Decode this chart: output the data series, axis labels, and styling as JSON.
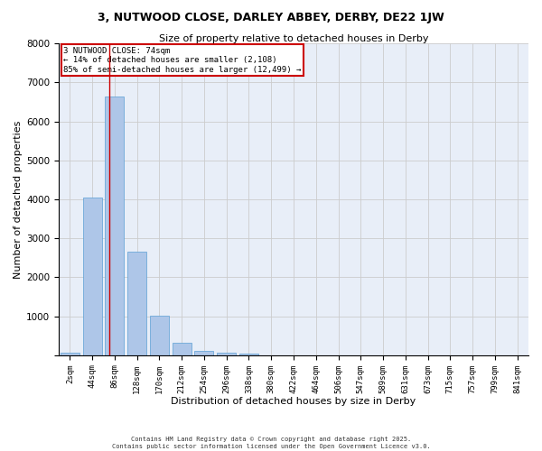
{
  "title": "3, NUTWOOD CLOSE, DARLEY ABBEY, DERBY, DE22 1JW",
  "subtitle": "Size of property relative to detached houses in Derby",
  "xlabel": "Distribution of detached houses by size in Derby",
  "ylabel": "Number of detached properties",
  "bar_color": "#aec6e8",
  "bar_edge_color": "#5a9fd4",
  "categories": [
    "2sqm",
    "44sqm",
    "86sqm",
    "128sqm",
    "170sqm",
    "212sqm",
    "254sqm",
    "296sqm",
    "338sqm",
    "380sqm",
    "422sqm",
    "464sqm",
    "506sqm",
    "547sqm",
    "589sqm",
    "631sqm",
    "673sqm",
    "715sqm",
    "757sqm",
    "799sqm",
    "841sqm"
  ],
  "values": [
    55,
    4050,
    6650,
    2650,
    1020,
    330,
    120,
    75,
    50,
    0,
    0,
    0,
    0,
    0,
    0,
    0,
    0,
    0,
    0,
    0,
    0
  ],
  "property_line_x": 1.75,
  "property_line_color": "#cc0000",
  "annotation_text": "3 NUTWOOD CLOSE: 74sqm\n← 14% of detached houses are smaller (2,108)\n85% of semi-detached houses are larger (12,499) →",
  "annotation_box_color": "#cc0000",
  "ylim": [
    0,
    8000
  ],
  "yticks": [
    0,
    1000,
    2000,
    3000,
    4000,
    5000,
    6000,
    7000,
    8000
  ],
  "grid_color": "#cccccc",
  "bg_color": "#e8eef8",
  "footer1": "Contains HM Land Registry data © Crown copyright and database right 2025.",
  "footer2": "Contains public sector information licensed under the Open Government Licence v3.0."
}
